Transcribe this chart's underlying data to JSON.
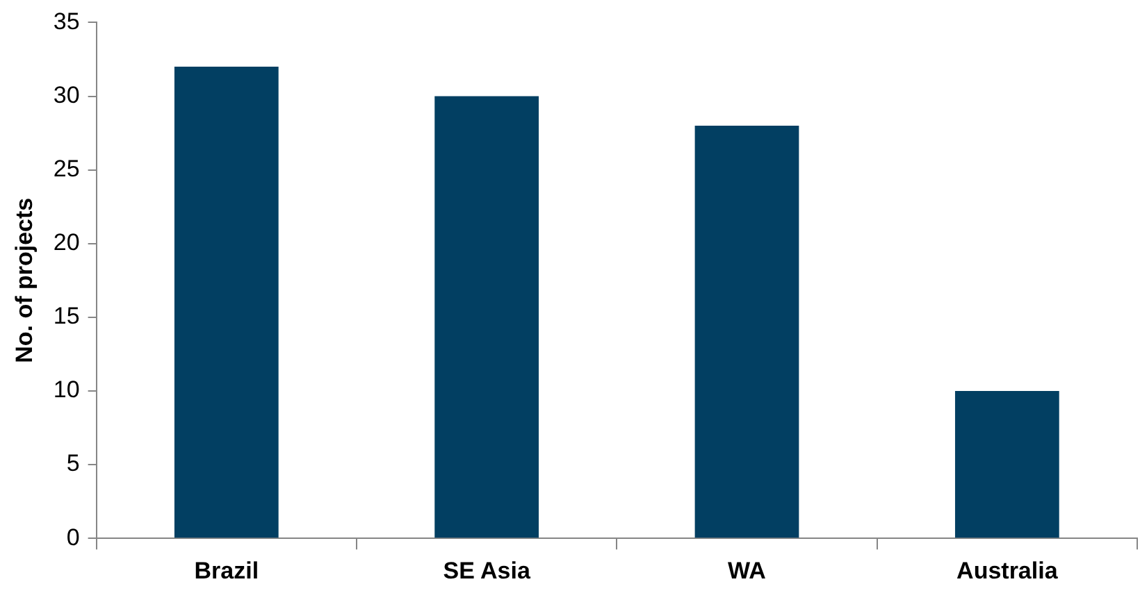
{
  "chart_data": {
    "type": "bar",
    "ylabel": "No. of projects",
    "categories": [
      "Brazil",
      "SE Asia",
      "WA",
      "Australia"
    ],
    "values": [
      32,
      30,
      28,
      10
    ],
    "color": "#023f62",
    "ylim": [
      0,
      35
    ],
    "yticks": [
      0,
      5,
      10,
      15,
      20,
      25,
      30,
      35
    ],
    "grid": false,
    "legend": false
  }
}
